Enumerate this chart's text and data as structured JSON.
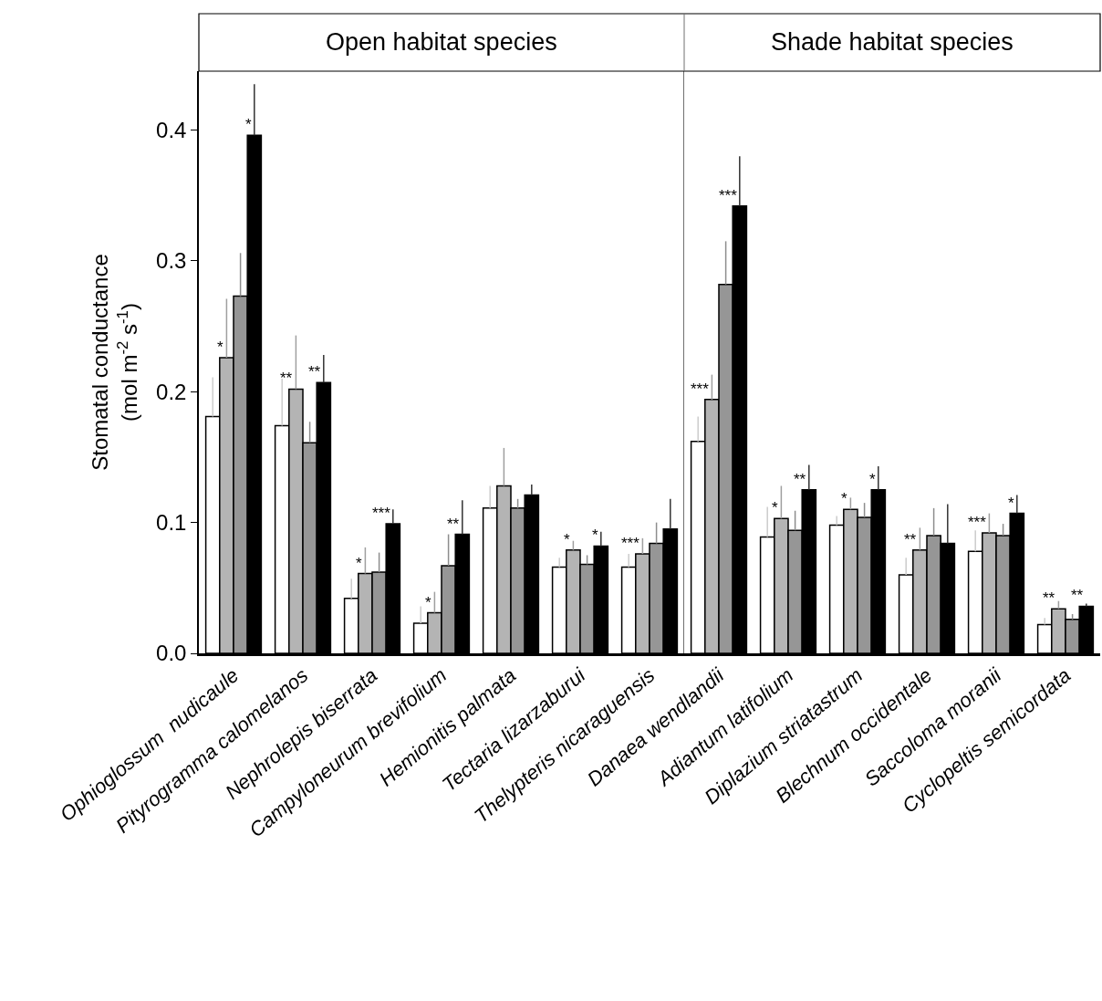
{
  "chart_data": [
    {
      "type": "bar",
      "title": "Open habitat species",
      "ylabel": "Stomatal conductance\n(mol m$^{-2}$ s$^{-1}$)",
      "categories": [
        "Ophioglossum  nudicaule",
        "Pityrogramma calomelanos",
        "Nephrolepis biserrata",
        "Campyloneurum brevifolium",
        "Hemionitis palmata",
        "Tectaria lizarzaburui",
        "Thelypteris nicaraguensis"
      ],
      "ylim": [
        0,
        0.445
      ],
      "yticks": [
        {
          "value": 0,
          "label": "0.0"
        },
        0.1,
        0.2,
        0.3,
        0.4
      ],
      "series": [
        {
          "color": "#ffffff",
          "values": [
            0.181,
            0.174,
            0.042,
            0.023,
            0.111,
            0.066,
            0.066
          ],
          "errors": [
            [
              0.181,
              0.211
            ],
            [
              0.174,
              0.21
            ],
            [
              0.042,
              0.057
            ],
            [
              0.023,
              0.036
            ],
            [
              0.111,
              0.128
            ],
            [
              0.066,
              0.073
            ],
            [
              0.066,
              0.076
            ]
          ],
          "value_labels": [
            null,
            null,
            null,
            null,
            null,
            null,
            null
          ]
        },
        {
          "color": "#b4b4b4",
          "values": [
            0.226,
            0.202,
            0.061,
            0.031,
            0.128,
            0.079,
            0.076
          ],
          "errors": [
            [
              0.226,
              0.271
            ],
            [
              0.202,
              0.243
            ],
            [
              0.061,
              0.081
            ],
            [
              0.031,
              0.047
            ],
            [
              0.128,
              0.157
            ],
            [
              0.079,
              0.086
            ],
            [
              0.076,
              0.088
            ]
          ],
          "value_labels": [
            "*",
            "**",
            "*",
            "*",
            null,
            "*",
            "***"
          ]
        },
        {
          "color": "#969696",
          "values": [
            0.273,
            0.161,
            0.062,
            0.067,
            0.111,
            0.068,
            0.084
          ],
          "errors": [
            [
              0.273,
              0.306
            ],
            [
              0.161,
              0.177
            ],
            [
              0.062,
              0.077
            ],
            [
              0.067,
              0.091
            ],
            [
              0.111,
              0.118
            ],
            [
              0.068,
              0.075
            ],
            [
              0.084,
              0.1
            ]
          ],
          "value_labels": [
            null,
            null,
            null,
            null,
            null,
            null,
            null
          ]
        },
        {
          "color": "#000000",
          "values": [
            0.396,
            0.207,
            0.099,
            0.091,
            0.121,
            0.082,
            0.095
          ],
          "errors": [
            [
              0.396,
              0.435
            ],
            [
              0.207,
              0.228
            ],
            [
              0.099,
              0.11
            ],
            [
              0.091,
              0.117
            ],
            [
              0.121,
              0.129
            ],
            [
              0.082,
              0.093
            ],
            [
              0.095,
              0.118
            ]
          ],
          "value_labels": [
            "*",
            "**",
            "***",
            "**",
            null,
            "*",
            null
          ]
        }
      ]
    },
    {
      "type": "bar",
      "title": "Shade habitat species",
      "categories": [
        "Danaea wendlandii",
        "Adiantum latifolium",
        "Diplazium striatastrum",
        "Blechnum occidentale",
        "Saccoloma moranii",
        "Cyclopeltis semicordata"
      ],
      "ylim": [
        0,
        0.445
      ],
      "tick_labels": "x",
      "series": [
        {
          "color": "#ffffff",
          "values": [
            0.162,
            0.089,
            0.098,
            0.06,
            0.078,
            0.022
          ],
          "errors": [
            [
              0.162,
              0.181
            ],
            [
              0.089,
              0.112
            ],
            [
              0.098,
              0.105
            ],
            [
              0.06,
              0.073
            ],
            [
              0.078,
              0.094
            ],
            [
              0.022,
              0.027
            ]
          ],
          "value_labels": [
            null,
            null,
            null,
            null,
            null,
            null
          ]
        },
        {
          "color": "#b4b4b4",
          "values": [
            0.194,
            0.103,
            0.11,
            0.079,
            0.092,
            0.034
          ],
          "errors": [
            [
              0.194,
              0.213
            ],
            [
              0.103,
              0.128
            ],
            [
              0.11,
              0.119
            ],
            [
              0.079,
              0.096
            ],
            [
              0.092,
              0.107
            ],
            [
              0.034,
              0.04
            ]
          ],
          "value_labels": [
            "***",
            "*",
            "*",
            "**",
            "***",
            "**"
          ]
        },
        {
          "color": "#969696",
          "values": [
            0.282,
            0.094,
            0.104,
            0.09,
            0.09,
            0.026
          ],
          "errors": [
            [
              0.282,
              0.315
            ],
            [
              0.094,
              0.109
            ],
            [
              0.104,
              0.115
            ],
            [
              0.09,
              0.111
            ],
            [
              0.09,
              0.099
            ],
            [
              0.026,
              0.03
            ]
          ],
          "value_labels": [
            null,
            null,
            null,
            null,
            null,
            null
          ]
        },
        {
          "color": "#000000",
          "values": [
            0.342,
            0.125,
            0.125,
            0.084,
            0.107,
            0.036
          ],
          "errors": [
            [
              0.342,
              0.38
            ],
            [
              0.125,
              0.144
            ],
            [
              0.125,
              0.143
            ],
            [
              0.084,
              0.114
            ],
            [
              0.107,
              0.121
            ],
            [
              0.036,
              0.038
            ]
          ],
          "value_labels": [
            "***",
            "**",
            "*",
            null,
            "*",
            "**"
          ]
        }
      ]
    }
  ]
}
